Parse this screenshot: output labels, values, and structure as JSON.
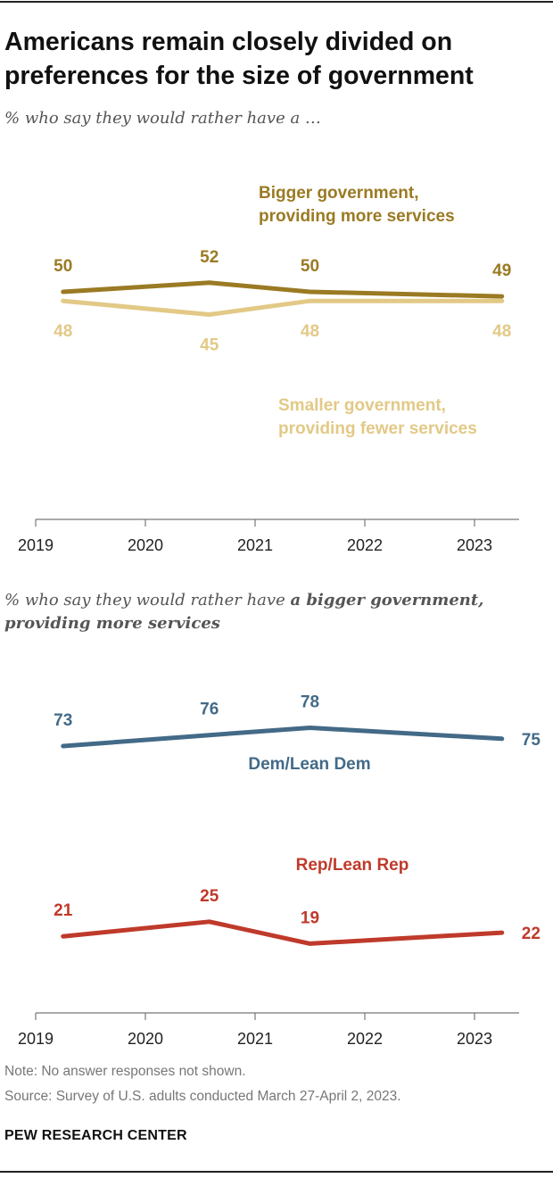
{
  "title": "Americans remain closely divided on preferences for the size of government",
  "notes": {
    "note": "Note: No answer responses not shown.",
    "source": "Source: Survey of U.S. adults conducted March 27-April 2, 2023.",
    "brand": "PEW RESEARCH CENTER"
  },
  "chart_data": [
    {
      "type": "line",
      "subtitle": "% who say they would rather have a …",
      "x_ticks": [
        "2019",
        "2020",
        "2021",
        "2022",
        "2023"
      ],
      "x": [
        "2019-04",
        "2020-08",
        "2021-07",
        "2023-04"
      ],
      "grid": false,
      "series": [
        {
          "name": "Bigger government, providing more services",
          "name_lines": [
            "Bigger government,",
            "providing more services"
          ],
          "color": "#9a7a23",
          "label_position": "above",
          "values": [
            50,
            52,
            50,
            49
          ]
        },
        {
          "name": "Smaller government, providing fewer services",
          "name_lines": [
            "Smaller government,",
            "providing fewer services"
          ],
          "color": "#e2c986",
          "label_position": "below",
          "values": [
            48,
            45,
            48,
            48
          ]
        }
      ]
    },
    {
      "type": "line",
      "subtitle_plain": "% who say they would rather have ",
      "subtitle_bold": "a bigger government, providing more services",
      "x_ticks": [
        "2019",
        "2020",
        "2021",
        "2022",
        "2023"
      ],
      "x": [
        "2019-04",
        "2020-08",
        "2021-07",
        "2023-04"
      ],
      "grid": false,
      "series": [
        {
          "name": "Dem/Lean Dem",
          "color": "#436a87",
          "label_position": "above",
          "values": [
            73,
            76,
            78,
            75
          ]
        },
        {
          "name": "Rep/Lean Rep",
          "color": "#bf3a2b",
          "label_position": "above",
          "values": [
            21,
            25,
            19,
            22
          ]
        }
      ]
    }
  ]
}
